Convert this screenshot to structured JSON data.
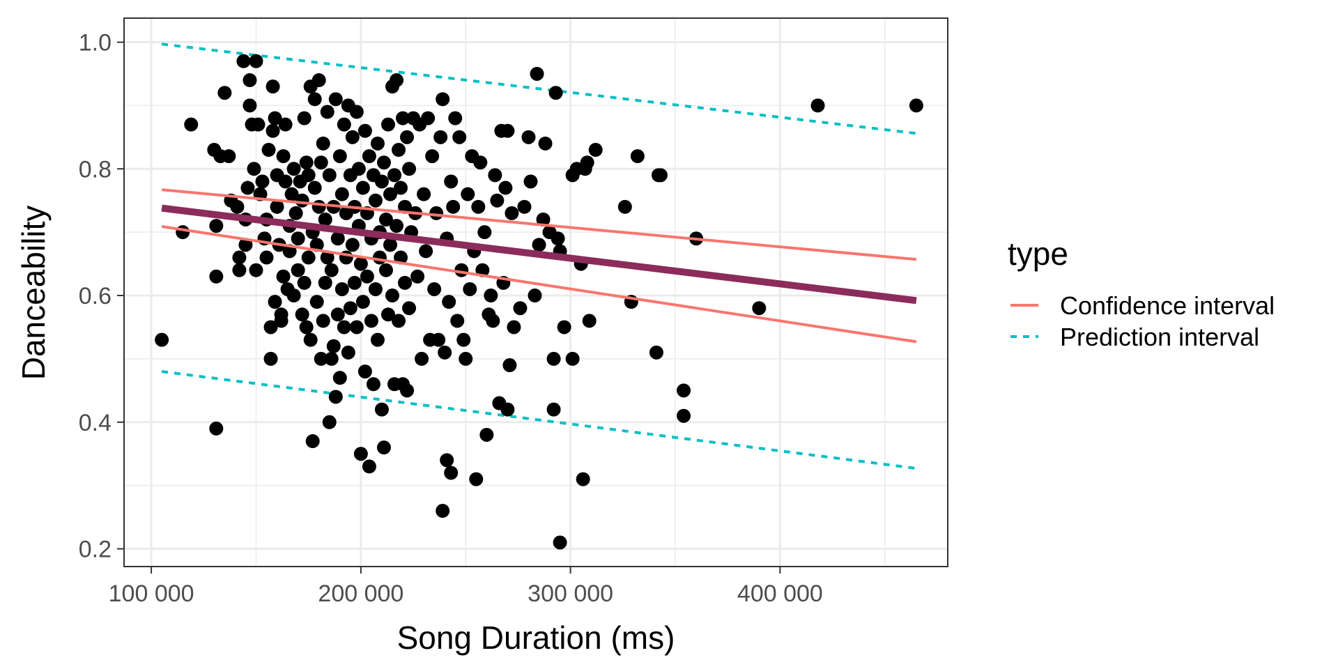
{
  "chart_data": {
    "type": "scatter",
    "xlabel": "Song Duration (ms)",
    "ylabel": "Danceability",
    "xlim": [
      87000,
      480000
    ],
    "ylim": [
      0.172,
      1.038
    ],
    "x_ticks": [
      100000,
      200000,
      300000,
      400000
    ],
    "x_tick_labels": [
      "100 000",
      "200 000",
      "300 000",
      "400 000"
    ],
    "y_ticks": [
      0.2,
      0.4,
      0.6,
      0.8,
      1.0
    ],
    "y_tick_labels": [
      "0.2",
      "0.4",
      "0.6",
      "0.8",
      "1.0"
    ],
    "grid": true,
    "legend": {
      "title": "type",
      "position": "right",
      "entries": [
        {
          "label": "Confidence interval",
          "color": "#F8766D",
          "linetype": "solid"
        },
        {
          "label": "Prediction interval",
          "color": "#00BFC4",
          "linetype": "dashed"
        }
      ]
    },
    "colors": {
      "points": "#000000",
      "fit": "#8B2C5B",
      "confidence": "#F8766D",
      "prediction": "#00BFC4",
      "grid": "#EBEBEB",
      "panel_border": "#333333"
    },
    "lines": {
      "fit": {
        "x": [
          105000,
          465000
        ],
        "y": [
          0.738,
          0.592
        ]
      },
      "confidence_upper": {
        "x": [
          105000,
          465000
        ],
        "y": [
          0.767,
          0.657
        ]
      },
      "confidence_lower": {
        "x": [
          105000,
          465000
        ],
        "y": [
          0.709,
          0.527
        ]
      },
      "prediction_upper": {
        "x": [
          105000,
          465000
        ],
        "y": [
          0.997,
          0.856
        ]
      },
      "prediction_lower": {
        "x": [
          105000,
          465000
        ],
        "y": [
          0.48,
          0.327
        ]
      }
    },
    "points": [
      [
        105000,
        0.53
      ],
      [
        115000,
        0.7
      ],
      [
        119000,
        0.87
      ],
      [
        130000,
        0.83
      ],
      [
        131000,
        0.71
      ],
      [
        131000,
        0.63
      ],
      [
        131000,
        0.39
      ],
      [
        133000,
        0.82
      ],
      [
        135000,
        0.92
      ],
      [
        137000,
        0.82
      ],
      [
        138000,
        0.75
      ],
      [
        141000,
        0.74
      ],
      [
        142000,
        0.64
      ],
      [
        142000,
        0.66
      ],
      [
        144000,
        0.97
      ],
      [
        145000,
        0.72
      ],
      [
        145000,
        0.68
      ],
      [
        146000,
        0.77
      ],
      [
        147000,
        0.9
      ],
      [
        147000,
        0.94
      ],
      [
        148000,
        0.87
      ],
      [
        149000,
        0.8
      ],
      [
        150000,
        0.97
      ],
      [
        150000,
        0.64
      ],
      [
        151000,
        0.87
      ],
      [
        152000,
        0.76
      ],
      [
        153000,
        0.78
      ],
      [
        154000,
        0.69
      ],
      [
        155000,
        0.66
      ],
      [
        155000,
        0.72
      ],
      [
        156000,
        0.83
      ],
      [
        157000,
        0.55
      ],
      [
        157000,
        0.5
      ],
      [
        158000,
        0.93
      ],
      [
        158000,
        0.86
      ],
      [
        159000,
        0.88
      ],
      [
        159000,
        0.59
      ],
      [
        160000,
        0.79
      ],
      [
        160000,
        0.74
      ],
      [
        161000,
        0.68
      ],
      [
        162000,
        0.57
      ],
      [
        162000,
        0.56
      ],
      [
        163000,
        0.82
      ],
      [
        163000,
        0.63
      ],
      [
        164000,
        0.78
      ],
      [
        164000,
        0.87
      ],
      [
        165000,
        0.61
      ],
      [
        166000,
        0.67
      ],
      [
        166000,
        0.71
      ],
      [
        167000,
        0.76
      ],
      [
        168000,
        0.6
      ],
      [
        168000,
        0.8
      ],
      [
        169000,
        0.73
      ],
      [
        170000,
        0.69
      ],
      [
        170000,
        0.64
      ],
      [
        171000,
        0.78
      ],
      [
        172000,
        0.57
      ],
      [
        172000,
        0.75
      ],
      [
        173000,
        0.88
      ],
      [
        173000,
        0.62
      ],
      [
        174000,
        0.81
      ],
      [
        174000,
        0.55
      ],
      [
        175000,
        0.66
      ],
      [
        175000,
        0.79
      ],
      [
        176000,
        0.53
      ],
      [
        176000,
        0.93
      ],
      [
        177000,
        0.7
      ],
      [
        177000,
        0.37
      ],
      [
        178000,
        0.91
      ],
      [
        178000,
        0.77
      ],
      [
        179000,
        0.59
      ],
      [
        179000,
        0.68
      ],
      [
        180000,
        0.94
      ],
      [
        180000,
        0.74
      ],
      [
        181000,
        0.5
      ],
      [
        181000,
        0.81
      ],
      [
        182000,
        0.84
      ],
      [
        182000,
        0.56
      ],
      [
        183000,
        0.62
      ],
      [
        183000,
        0.72
      ],
      [
        184000,
        0.89
      ],
      [
        184000,
        0.66
      ],
      [
        185000,
        0.4
      ],
      [
        185000,
        0.79
      ],
      [
        186000,
        0.64
      ],
      [
        186000,
        0.5
      ],
      [
        187000,
        0.74
      ],
      [
        187000,
        0.52
      ],
      [
        188000,
        0.91
      ],
      [
        188000,
        0.44
      ],
      [
        189000,
        0.69
      ],
      [
        189000,
        0.57
      ],
      [
        190000,
        0.82
      ],
      [
        190000,
        0.47
      ],
      [
        191000,
        0.76
      ],
      [
        191000,
        0.61
      ],
      [
        192000,
        0.87
      ],
      [
        192000,
        0.55
      ],
      [
        193000,
        0.73
      ],
      [
        193000,
        0.66
      ],
      [
        194000,
        0.9
      ],
      [
        194000,
        0.51
      ],
      [
        195000,
        0.79
      ],
      [
        195000,
        0.58
      ],
      [
        196000,
        0.68
      ],
      [
        196000,
        0.85
      ],
      [
        197000,
        0.62
      ],
      [
        197000,
        0.74
      ],
      [
        198000,
        0.55
      ],
      [
        198000,
        0.89
      ],
      [
        199000,
        0.71
      ],
      [
        199000,
        0.8
      ],
      [
        200000,
        0.35
      ],
      [
        200000,
        0.65
      ],
      [
        201000,
        0.77
      ],
      [
        201000,
        0.59
      ],
      [
        202000,
        0.86
      ],
      [
        202000,
        0.48
      ],
      [
        203000,
        0.73
      ],
      [
        203000,
        0.63
      ],
      [
        204000,
        0.33
      ],
      [
        204000,
        0.82
      ],
      [
        205000,
        0.69
      ],
      [
        205000,
        0.56
      ],
      [
        206000,
        0.79
      ],
      [
        206000,
        0.46
      ],
      [
        207000,
        0.75
      ],
      [
        207000,
        0.61
      ],
      [
        208000,
        0.84
      ],
      [
        208000,
        0.53
      ],
      [
        209000,
        0.7
      ],
      [
        209000,
        0.66
      ],
      [
        210000,
        0.42
      ],
      [
        210000,
        0.78
      ],
      [
        211000,
        0.36
      ],
      [
        211000,
        0.81
      ],
      [
        212000,
        0.64
      ],
      [
        212000,
        0.72
      ],
      [
        213000,
        0.57
      ],
      [
        213000,
        0.87
      ],
      [
        214000,
        0.76
      ],
      [
        214000,
        0.68
      ],
      [
        215000,
        0.93
      ],
      [
        215000,
        0.6
      ],
      [
        216000,
        0.79
      ],
      [
        216000,
        0.46
      ],
      [
        217000,
        0.94
      ],
      [
        217000,
        0.71
      ],
      [
        218000,
        0.56
      ],
      [
        218000,
        0.83
      ],
      [
        219000,
        0.66
      ],
      [
        219000,
        0.77
      ],
      [
        220000,
        0.46
      ],
      [
        220000,
        0.88
      ],
      [
        221000,
        0.62
      ],
      [
        221000,
        0.74
      ],
      [
        222000,
        0.45
      ],
      [
        222000,
        0.85
      ],
      [
        223000,
        0.8
      ],
      [
        223000,
        0.58
      ],
      [
        224000,
        0.7
      ],
      [
        225000,
        0.88
      ],
      [
        226000,
        0.73
      ],
      [
        227000,
        0.63
      ],
      [
        228000,
        0.87
      ],
      [
        229000,
        0.5
      ],
      [
        230000,
        0.76
      ],
      [
        231000,
        0.67
      ],
      [
        232000,
        0.88
      ],
      [
        233000,
        0.53
      ],
      [
        234000,
        0.82
      ],
      [
        235000,
        0.61
      ],
      [
        236000,
        0.73
      ],
      [
        237000,
        0.53
      ],
      [
        238000,
        0.85
      ],
      [
        239000,
        0.26
      ],
      [
        239000,
        0.91
      ],
      [
        240000,
        0.51
      ],
      [
        241000,
        0.34
      ],
      [
        241000,
        0.69
      ],
      [
        242000,
        0.59
      ],
      [
        243000,
        0.32
      ],
      [
        243000,
        0.78
      ],
      [
        244000,
        0.74
      ],
      [
        245000,
        0.88
      ],
      [
        246000,
        0.56
      ],
      [
        247000,
        0.85
      ],
      [
        248000,
        0.64
      ],
      [
        249000,
        0.53
      ],
      [
        250000,
        0.5
      ],
      [
        251000,
        0.76
      ],
      [
        252000,
        0.61
      ],
      [
        253000,
        0.82
      ],
      [
        254000,
        0.67
      ],
      [
        255000,
        0.31
      ],
      [
        256000,
        0.74
      ],
      [
        257000,
        0.81
      ],
      [
        258000,
        0.64
      ],
      [
        259000,
        0.7
      ],
      [
        260000,
        0.38
      ],
      [
        261000,
        0.57
      ],
      [
        262000,
        0.6
      ],
      [
        263000,
        0.56
      ],
      [
        264000,
        0.79
      ],
      [
        265000,
        0.75
      ],
      [
        266000,
        0.43
      ],
      [
        267000,
        0.86
      ],
      [
        268000,
        0.62
      ],
      [
        269000,
        0.77
      ],
      [
        270000,
        0.42
      ],
      [
        270000,
        0.86
      ],
      [
        271000,
        0.49
      ],
      [
        272000,
        0.73
      ],
      [
        273000,
        0.55
      ],
      [
        276000,
        0.58
      ],
      [
        278000,
        0.74
      ],
      [
        280000,
        0.85
      ],
      [
        281000,
        0.78
      ],
      [
        283000,
        0.6
      ],
      [
        284000,
        0.95
      ],
      [
        285000,
        0.68
      ],
      [
        287000,
        0.72
      ],
      [
        288000,
        0.84
      ],
      [
        290000,
        0.7
      ],
      [
        292000,
        0.42
      ],
      [
        292000,
        0.5
      ],
      [
        293000,
        0.92
      ],
      [
        294000,
        0.69
      ],
      [
        295000,
        0.67
      ],
      [
        295000,
        0.21
      ],
      [
        297000,
        0.55
      ],
      [
        301000,
        0.5
      ],
      [
        301000,
        0.79
      ],
      [
        303000,
        0.8
      ],
      [
        305000,
        0.65
      ],
      [
        306000,
        0.31
      ],
      [
        307000,
        0.8
      ],
      [
        308000,
        0.81
      ],
      [
        309000,
        0.56
      ],
      [
        312000,
        0.83
      ],
      [
        326000,
        0.74
      ],
      [
        329000,
        0.59
      ],
      [
        332000,
        0.82
      ],
      [
        341000,
        0.51
      ],
      [
        342000,
        0.79
      ],
      [
        343000,
        0.79
      ],
      [
        354000,
        0.45
      ],
      [
        354000,
        0.41
      ],
      [
        360000,
        0.69
      ],
      [
        390000,
        0.58
      ],
      [
        418000,
        0.9
      ],
      [
        465000,
        0.9
      ]
    ]
  }
}
